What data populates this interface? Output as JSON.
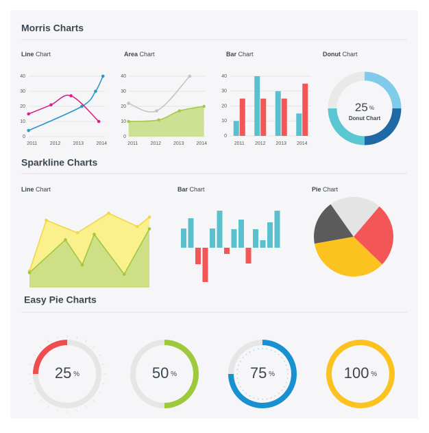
{
  "sections": [
    {
      "title": "Morris Charts"
    },
    {
      "title": "Sparkline Charts"
    },
    {
      "title": "Easy Pie Charts"
    }
  ],
  "chart_data": [
    {
      "type": "line",
      "title": "Line Chart",
      "xlim": [
        2010.8,
        2014.2
      ],
      "xticks": [
        2011,
        2012,
        2013,
        2014
      ],
      "ylim": [
        0,
        40
      ],
      "yticks": [
        0,
        10,
        20,
        30,
        40
      ],
      "grid": true,
      "series": [
        {
          "color": "#2b98c9",
          "x": [
            2010.85,
            2013.15,
            2013.74,
            2014.06
          ],
          "values": [
            4,
            20,
            30,
            40
          ]
        },
        {
          "color": "#d6228c",
          "x": [
            2010.85,
            2011.82,
            2012.68,
            2013.88
          ],
          "values": [
            15,
            21,
            27,
            10
          ]
        }
      ]
    },
    {
      "type": "area",
      "title": "Area Chart",
      "xlim": [
        2010.8,
        2014.2
      ],
      "xticks": [
        2011,
        2012,
        2013,
        2014
      ],
      "ylim": [
        0,
        40
      ],
      "yticks": [
        0,
        10,
        20,
        30,
        40
      ],
      "grid": true,
      "series": [
        {
          "color": "#c4c4c4",
          "x": [
            2010.82,
            2012.04,
            2013.48
          ],
          "values": [
            22,
            17,
            40
          ]
        },
        {
          "color": "#a6c94a",
          "fill": "#c9de88",
          "x": [
            2010.82,
            2012.13,
            2013.03,
            2014.1
          ],
          "values": [
            10,
            11,
            17,
            20
          ]
        }
      ]
    },
    {
      "type": "bar",
      "title": "Bar Chart",
      "categories": [
        "2011",
        "2012",
        "2013",
        "2014"
      ],
      "ylim": [
        0,
        40
      ],
      "yticks": [
        0,
        10,
        20,
        30,
        40
      ],
      "grid": true,
      "series": [
        {
          "color": "#5bc0ce",
          "values": [
            10,
            40,
            30,
            15
          ]
        },
        {
          "color": "#f35656",
          "values": [
            25,
            25,
            25,
            35
          ]
        }
      ]
    },
    {
      "type": "donut",
      "title": "Donut Chart",
      "values": [
        25,
        25,
        25,
        25
      ],
      "colors": [
        "#7fcbe9",
        "#1f6aa5",
        "#5bc7d3",
        "#e9e9e9"
      ],
      "center_label": "25%"
    },
    {
      "type": "sparkline-area",
      "title": "Line Chart",
      "xlim": [
        0,
        100
      ],
      "ylim": [
        0,
        100
      ],
      "series": [
        {
          "color": "#f2d54a",
          "fill": "#fbf07f",
          "x": [
            0,
            14,
            40,
            66,
            90,
            100
          ],
          "values": [
            21,
            86,
            70,
            95,
            78,
            90
          ]
        },
        {
          "color": "#9fc740",
          "fill": "#c9dd84",
          "x": [
            0,
            30,
            44,
            54,
            79,
            100
          ],
          "values": [
            19,
            61,
            29,
            68,
            17,
            75
          ]
        }
      ]
    },
    {
      "type": "sparkline-bar",
      "title": "Bar Chart",
      "ylim": [
        -55,
        55
      ],
      "color": "#5bc0ce",
      "negative_color": "#f35656",
      "values": [
        28,
        43,
        -24,
        -50,
        28,
        54,
        -9,
        27,
        41,
        -23,
        27,
        11,
        37,
        54
      ]
    },
    {
      "type": "pie",
      "title": "Pie Chart",
      "values": [
        18,
        21,
        26,
        35
      ],
      "colors": [
        "#5b5b5b",
        "#e4e4e4",
        "#f35656",
        "#fcc320"
      ]
    },
    {
      "type": "easy-pie",
      "ylim": [
        0,
        100
      ],
      "values": [
        25,
        50,
        75,
        100
      ],
      "value_labels": [
        "25%",
        "50%",
        "75%",
        "100%"
      ],
      "colors": [
        "#f04e4e",
        "#9cca3b",
        "#1990d0",
        "#fcc320"
      ]
    }
  ]
}
